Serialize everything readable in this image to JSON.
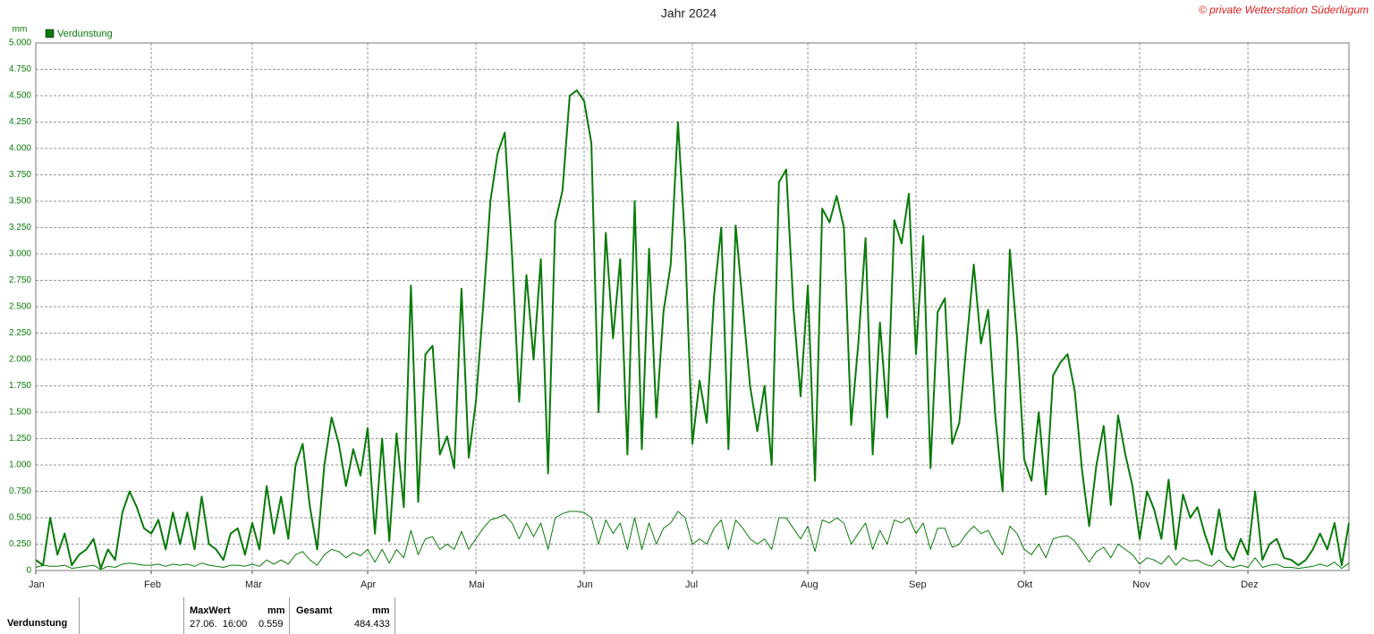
{
  "chart_data": {
    "type": "line",
    "title": "Jahr 2024",
    "copyright": "© private Wetterstation Süderlügum",
    "y_label": "mm",
    "grid": true,
    "categories": [
      "Jan",
      null,
      null,
      null,
      null,
      null,
      null,
      null,
      null,
      null,
      null,
      null,
      null,
      null,
      null,
      null,
      "Feb",
      null,
      null,
      null,
      null,
      null,
      null,
      null,
      null,
      null,
      null,
      null,
      null,
      null,
      "Mär",
      null,
      null,
      null,
      null,
      null,
      null,
      null,
      null,
      null,
      null,
      null,
      null,
      null,
      null,
      null,
      "Apr",
      null,
      null,
      null,
      null,
      null,
      null,
      null,
      null,
      null,
      null,
      null,
      null,
      null,
      null,
      "Mai",
      null,
      null,
      null,
      null,
      null,
      null,
      null,
      null,
      null,
      null,
      null,
      null,
      null,
      null,
      "Jun",
      null,
      null,
      null,
      null,
      null,
      null,
      null,
      null,
      null,
      null,
      null,
      null,
      null,
      null,
      "Jul",
      null,
      null,
      null,
      null,
      null,
      null,
      null,
      null,
      null,
      null,
      null,
      null,
      null,
      null,
      null,
      "Aug",
      null,
      null,
      null,
      null,
      null,
      null,
      null,
      null,
      null,
      null,
      null,
      null,
      null,
      null,
      "Sep",
      null,
      null,
      null,
      null,
      null,
      null,
      null,
      null,
      null,
      null,
      null,
      null,
      null,
      null,
      "Okt",
      null,
      null,
      null,
      null,
      null,
      null,
      null,
      null,
      null,
      null,
      null,
      null,
      null,
      null,
      null,
      "Nov",
      null,
      null,
      null,
      null,
      null,
      null,
      null,
      null,
      null,
      null,
      null,
      null,
      null,
      null,
      "Dez",
      null,
      null,
      null,
      null,
      null,
      null,
      null,
      null,
      null,
      null,
      null,
      null,
      null,
      null
    ],
    "series": [
      {
        "name": "Verdunstung",
        "color": "#0a7a0a",
        "line_width": 2,
        "values": [
          0.1,
          0.05,
          0.5,
          0.15,
          0.35,
          0.05,
          0.15,
          0.2,
          0.3,
          0.02,
          0.2,
          0.1,
          0.55,
          0.75,
          0.6,
          0.4,
          0.35,
          0.48,
          0.2,
          0.55,
          0.25,
          0.55,
          0.2,
          0.7,
          0.25,
          0.2,
          0.1,
          0.35,
          0.4,
          0.15,
          0.45,
          0.2,
          0.8,
          0.35,
          0.7,
          0.3,
          1.0,
          1.2,
          0.6,
          0.2,
          1.0,
          1.45,
          1.2,
          0.8,
          1.15,
          0.9,
          1.35,
          0.35,
          1.25,
          0.28,
          1.3,
          0.6,
          2.7,
          0.65,
          2.05,
          2.13,
          1.1,
          1.27,
          0.97,
          2.67,
          1.07,
          1.6,
          2.5,
          3.5,
          3.95,
          4.15,
          3.0,
          1.6,
          2.8,
          2.0,
          2.95,
          0.92,
          3.3,
          3.6,
          4.5,
          4.55,
          4.45,
          4.05,
          1.5,
          3.2,
          2.2,
          2.95,
          1.1,
          3.5,
          1.15,
          3.05,
          1.45,
          2.45,
          2.9,
          4.25,
          3.1,
          1.2,
          1.8,
          1.4,
          2.6,
          3.25,
          1.15,
          3.27,
          2.5,
          1.75,
          1.32,
          1.75,
          1.0,
          3.68,
          3.8,
          2.5,
          1.65,
          2.7,
          0.85,
          3.43,
          3.3,
          3.55,
          3.25,
          1.38,
          2.15,
          3.15,
          1.1,
          2.35,
          1.45,
          3.32,
          3.1,
          3.57,
          2.05,
          3.17,
          0.97,
          2.45,
          2.58,
          1.2,
          1.4,
          2.15,
          2.9,
          2.15,
          2.47,
          1.45,
          0.75,
          3.04,
          2.2,
          1.05,
          0.85,
          1.5,
          0.72,
          1.85,
          1.97,
          2.05,
          1.7,
          0.95,
          0.42,
          1.0,
          1.37,
          0.62,
          1.47,
          1.1,
          0.8,
          0.3,
          0.75,
          0.58,
          0.3,
          0.86,
          0.2,
          0.72,
          0.5,
          0.6,
          0.35,
          0.15,
          0.58,
          0.2,
          0.1,
          0.3,
          0.15,
          0.75,
          0.1,
          0.25,
          0.3,
          0.12,
          0.1,
          0.05,
          0.1,
          0.2,
          0.35,
          0.2,
          0.45,
          0.05,
          0.45
        ]
      },
      {
        "color": "#0a7a0a",
        "line_width": 1,
        "values": [
          0.03,
          0.05,
          0.04,
          0.04,
          0.05,
          0.02,
          0.03,
          0.04,
          0.05,
          0.01,
          0.04,
          0.03,
          0.06,
          0.07,
          0.06,
          0.05,
          0.05,
          0.06,
          0.04,
          0.06,
          0.05,
          0.06,
          0.04,
          0.07,
          0.05,
          0.04,
          0.03,
          0.05,
          0.05,
          0.04,
          0.06,
          0.04,
          0.1,
          0.06,
          0.1,
          0.06,
          0.15,
          0.18,
          0.1,
          0.05,
          0.15,
          0.2,
          0.18,
          0.12,
          0.17,
          0.14,
          0.2,
          0.08,
          0.2,
          0.07,
          0.2,
          0.12,
          0.38,
          0.15,
          0.3,
          0.32,
          0.2,
          0.25,
          0.2,
          0.37,
          0.2,
          0.3,
          0.4,
          0.48,
          0.5,
          0.53,
          0.45,
          0.3,
          0.45,
          0.32,
          0.45,
          0.2,
          0.5,
          0.54,
          0.56,
          0.56,
          0.55,
          0.5,
          0.25,
          0.48,
          0.35,
          0.45,
          0.2,
          0.5,
          0.2,
          0.45,
          0.25,
          0.4,
          0.45,
          0.56,
          0.5,
          0.25,
          0.3,
          0.25,
          0.4,
          0.48,
          0.2,
          0.48,
          0.4,
          0.3,
          0.25,
          0.3,
          0.2,
          0.5,
          0.5,
          0.4,
          0.3,
          0.42,
          0.18,
          0.48,
          0.45,
          0.5,
          0.45,
          0.25,
          0.35,
          0.45,
          0.2,
          0.38,
          0.25,
          0.48,
          0.45,
          0.5,
          0.35,
          0.45,
          0.2,
          0.4,
          0.4,
          0.22,
          0.25,
          0.35,
          0.42,
          0.35,
          0.38,
          0.25,
          0.15,
          0.42,
          0.35,
          0.2,
          0.15,
          0.25,
          0.12,
          0.3,
          0.32,
          0.33,
          0.28,
          0.18,
          0.08,
          0.18,
          0.22,
          0.12,
          0.25,
          0.2,
          0.15,
          0.06,
          0.12,
          0.1,
          0.06,
          0.14,
          0.05,
          0.12,
          0.09,
          0.1,
          0.06,
          0.04,
          0.1,
          0.04,
          0.03,
          0.05,
          0.03,
          0.12,
          0.03,
          0.05,
          0.06,
          0.03,
          0.03,
          0.02,
          0.03,
          0.04,
          0.06,
          0.04,
          0.08,
          0.02,
          0.07
        ]
      }
    ],
    "ylim": [
      0,
      5
    ],
    "yticks": [
      0,
      {
        "value": 0.25,
        "label": "0.250"
      },
      {
        "value": 0.5,
        "label": "0.500"
      },
      {
        "value": 0.75,
        "label": "0.750"
      },
      {
        "value": 1,
        "label": "1.000"
      },
      {
        "value": 1.25,
        "label": "1.250"
      },
      {
        "value": 1.5,
        "label": "1.500"
      },
      {
        "value": 1.75,
        "label": "1.750"
      },
      {
        "value": 2,
        "label": "2.000"
      },
      {
        "value": 2.25,
        "label": "2.250"
      },
      {
        "value": 2.5,
        "label": "2.500"
      },
      {
        "value": 2.75,
        "label": "2.750"
      },
      {
        "value": 3,
        "label": "3.000"
      },
      {
        "value": 3.25,
        "label": "3.250"
      },
      {
        "value": 3.5,
        "label": "3.500"
      },
      {
        "value": 3.75,
        "label": "3.750"
      },
      {
        "value": 4,
        "label": "4.000"
      },
      {
        "value": 4.25,
        "label": "4.250"
      },
      {
        "value": 4.5,
        "label": "4.500"
      },
      {
        "value": 4.75,
        "label": "4.750"
      },
      {
        "value": 5,
        "label": "5.000"
      }
    ]
  },
  "summary": {
    "row_label": "Verdunstung",
    "max_header": "MaxWert",
    "max_unit": "mm",
    "max_time": "27.06.  16:00",
    "max_value": "0.559",
    "total_header": "Gesamt",
    "total_unit": "mm",
    "total_value": "484.433"
  }
}
